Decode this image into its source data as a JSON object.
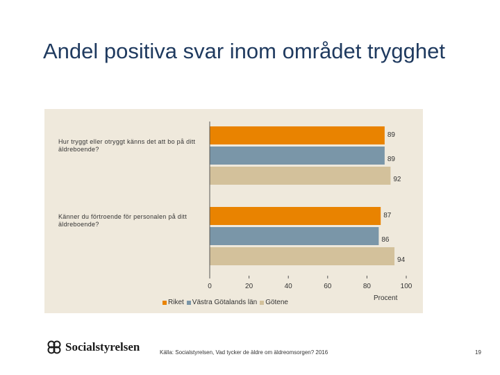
{
  "slide": {
    "title": "Andel positiva svar inom området trygghet",
    "source": "Källa: Socialstyrelsen, Vad tycker de äldre om äldreomsorgen? 2016",
    "page_number": "19",
    "logo_text": "Socialstyrelsen"
  },
  "chart_data": {
    "type": "bar",
    "orientation": "horizontal",
    "categories": [
      "Hur tryggt eller otryggt känns det att bo på ditt äldreboende?",
      "Känner du förtroende för personalen på ditt äldreboende?"
    ],
    "series": [
      {
        "name": "Riket",
        "values": [
          89,
          87
        ],
        "color": "#e98300"
      },
      {
        "name": "Västra Götalands län",
        "values": [
          89,
          86
        ],
        "color": "#7a96a8"
      },
      {
        "name": "Götene",
        "values": [
          92,
          94
        ],
        "color": "#d3c19b"
      }
    ],
    "xlim": [
      0,
      100
    ],
    "xticks": [
      "0",
      "20",
      "40",
      "60",
      "80",
      "100"
    ],
    "xlabel": "Procent",
    "legend_position": "bottom",
    "grid": false
  }
}
